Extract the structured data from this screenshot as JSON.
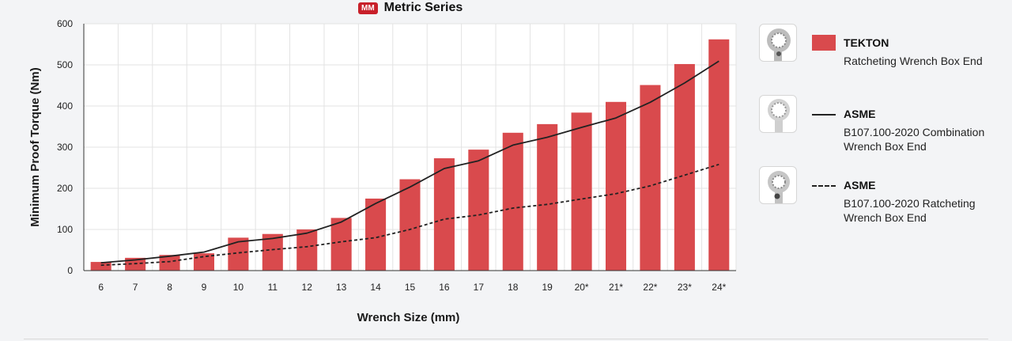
{
  "header": {
    "badge": "MM",
    "title": "Metric Series"
  },
  "legend": [
    {
      "name": "TEKTON",
      "desc": "Ratcheting Wrench Box End",
      "style": "bar",
      "icon": "ratcheting-wrench-icon"
    },
    {
      "name": "ASME",
      "desc": "B107.100-2020 Combination Wrench Box End",
      "style": "solid-line",
      "icon": "combination-wrench-icon"
    },
    {
      "name": "ASME",
      "desc": "B107.100-2020 Ratcheting Wrench Box End",
      "style": "dashed-line",
      "icon": "ratcheting-wrench-icon"
    }
  ],
  "colors": {
    "bar": "#d94a4d",
    "line": "#222222",
    "badge": "#c8202a",
    "grid": "#e3e3e3"
  },
  "chart_data": {
    "type": "bar",
    "title": "Metric Series",
    "xlabel": "Wrench Size (mm)",
    "ylabel": "Minimum Proof Torque (Nm)",
    "ylim": [
      0,
      600
    ],
    "yticks": [
      0,
      100,
      200,
      300,
      400,
      500,
      600
    ],
    "grid": true,
    "legend_position": "right",
    "categories": [
      "6",
      "7",
      "8",
      "9",
      "10",
      "11",
      "12",
      "13",
      "14",
      "15",
      "16",
      "17",
      "18",
      "19",
      "20*",
      "21*",
      "22*",
      "23*",
      "24*"
    ],
    "series": [
      {
        "name": "TEKTON",
        "kind": "bar",
        "values": [
          21,
          31,
          38,
          42,
          80,
          89,
          100,
          128,
          175,
          222,
          273,
          294,
          335,
          356,
          384,
          410,
          451,
          502,
          562
        ]
      },
      {
        "name": "ASME",
        "kind": "solid-line",
        "values": [
          19,
          26,
          35,
          45,
          70,
          78,
          91,
          118,
          163,
          203,
          248,
          267,
          305,
          324,
          348,
          371,
          409,
          456,
          509
        ]
      },
      {
        "name": "ASME",
        "kind": "dashed-line",
        "values": [
          13,
          17,
          22,
          34,
          43,
          51,
          58,
          70,
          80,
          100,
          125,
          135,
          152,
          161,
          174,
          187,
          206,
          232,
          258
        ]
      }
    ]
  }
}
